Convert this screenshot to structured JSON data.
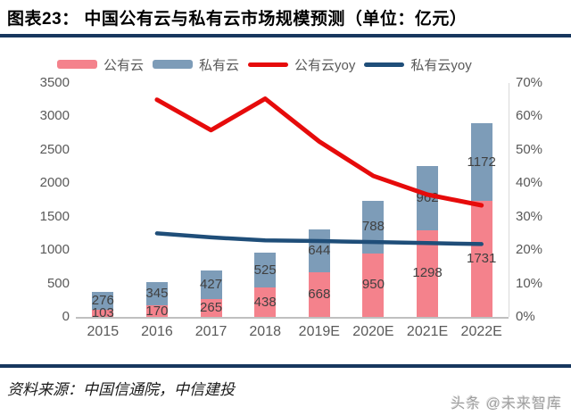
{
  "header": {
    "title": "图表23：  中国公有云与私有云市场规模预测（单位：亿元）"
  },
  "legend": {
    "items": [
      {
        "label": "公有云",
        "swatch": "bar",
        "color_key": "public_bar"
      },
      {
        "label": "私有云",
        "swatch": "bar",
        "color_key": "private_bar"
      },
      {
        "label": "公有云yoy",
        "swatch": "line",
        "color_key": "public_yoy_line"
      },
      {
        "label": "私有云yoy",
        "swatch": "line",
        "color_key": "private_yoy_line"
      }
    ]
  },
  "chart_data": {
    "type": "combo-stacked-bar-line",
    "categories": [
      "2015",
      "2016",
      "2017",
      "2018",
      "2019E",
      "2020E",
      "2021E",
      "2022E"
    ],
    "bar_series": [
      {
        "name": "公有云",
        "color_key": "public_bar",
        "values": [
          103,
          170,
          265,
          438,
          668,
          950,
          1298,
          1731
        ]
      },
      {
        "name": "私有云",
        "color_key": "private_bar",
        "values": [
          276,
          345,
          427,
          525,
          644,
          788,
          962,
          1172
        ]
      }
    ],
    "line_series": [
      {
        "name": "公有云yoy",
        "color_key": "public_yoy_line",
        "stroke_width": 5,
        "values": [
          null,
          65.0,
          55.9,
          65.3,
          52.5,
          42.2,
          36.6,
          33.4
        ]
      },
      {
        "name": "私有云yoy",
        "color_key": "private_yoy_line",
        "stroke_width": 4.5,
        "values": [
          null,
          25.0,
          23.8,
          22.9,
          22.7,
          22.4,
          22.1,
          21.8
        ]
      }
    ],
    "left_axis": {
      "min": 0,
      "max": 3500,
      "step": 500,
      "ticks_top_to_bottom": [
        "3500",
        "3000",
        "2500",
        "2000",
        "1500",
        "1000",
        "500",
        "0"
      ]
    },
    "right_axis": {
      "min": 0,
      "max": 70,
      "step": 10,
      "ticks_top_to_bottom": [
        "70%",
        "60%",
        "50%",
        "40%",
        "30%",
        "20%",
        "10%",
        "0%"
      ]
    },
    "stacked": true,
    "grid": false,
    "legend_position": "top"
  },
  "colors": {
    "public_bar": "#f4828c",
    "private_bar": "#7d9cb8",
    "public_yoy_line": "#e60b0b",
    "private_yoy_line": "#1f4e79",
    "divider": "#17375e",
    "axis_text": "#595959",
    "label_text": "#404040",
    "axis_line": "#bfbfbf"
  },
  "footer": {
    "source": "资料来源：中国信通院，中信建投",
    "watermark": "头条 @未来智库"
  }
}
